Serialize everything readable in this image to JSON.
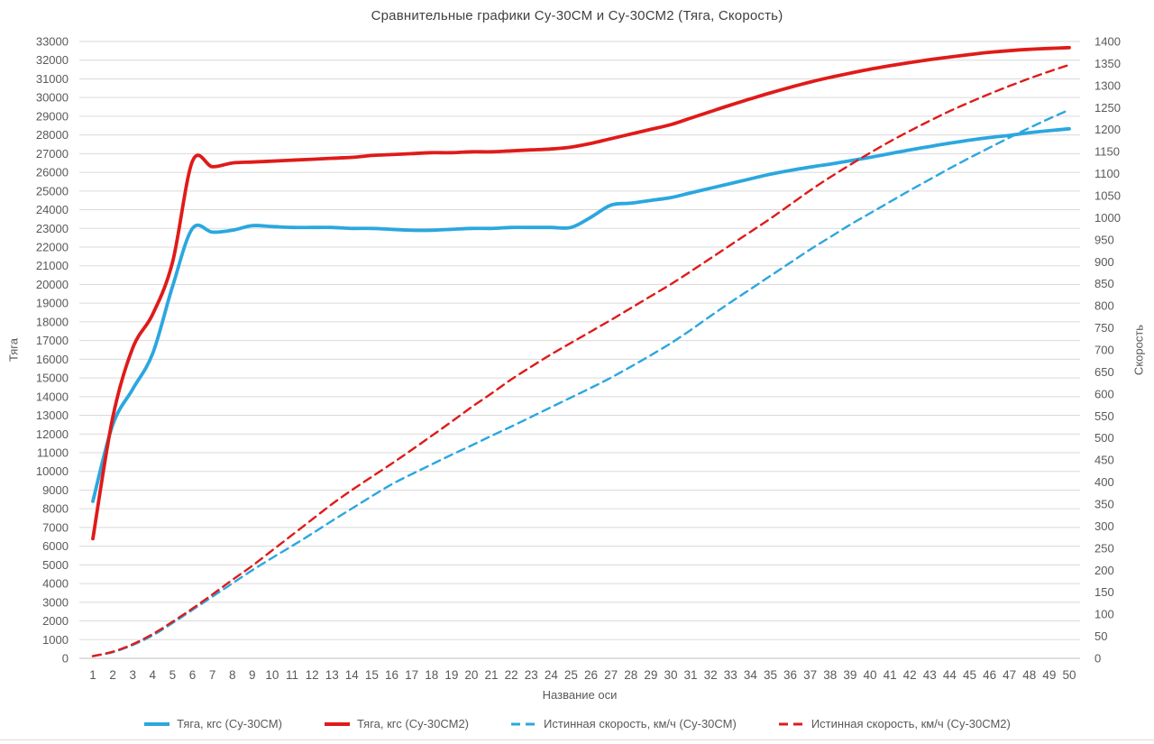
{
  "chart_data": {
    "type": "line",
    "title": "Сравнительные графики Су-30СМ и Су-30СМ2 (Тяга, Скорость)",
    "xlabel": "Название оси",
    "ylabel_left": "Тяга",
    "ylabel_right": "Скорость",
    "grid": true,
    "legend_position": "bottom",
    "axis_left": {
      "min": 0,
      "max": 33000,
      "step": 1000
    },
    "axis_right": {
      "min": 0,
      "max": 1400,
      "step": 50
    },
    "colors": {
      "blue": "#2BA7DF",
      "red": "#DF1B19",
      "gridline": "#DADADA",
      "axis_zero_line": "#BFBFBF",
      "tick_text": "#595959",
      "title_text": "#3F3F3F"
    },
    "x": [
      1,
      2,
      3,
      4,
      5,
      6,
      7,
      8,
      9,
      10,
      11,
      12,
      13,
      14,
      15,
      16,
      17,
      18,
      19,
      20,
      21,
      22,
      23,
      24,
      25,
      26,
      27,
      28,
      29,
      30,
      31,
      32,
      33,
      34,
      35,
      36,
      37,
      38,
      39,
      40,
      41,
      42,
      43,
      44,
      45,
      46,
      47,
      48,
      49,
      50
    ],
    "series": [
      {
        "name": "Тяга, кгс (Су-30СМ)",
        "axis": "left",
        "style": "solid",
        "color": "#2BA7DF",
        "values": [
          8400,
          12500,
          14400,
          16300,
          19900,
          23000,
          22800,
          22900,
          23150,
          23100,
          23050,
          23050,
          23050,
          23000,
          23000,
          22950,
          22900,
          22900,
          22950,
          23000,
          23000,
          23050,
          23050,
          23050,
          23050,
          23600,
          24250,
          24350,
          24500,
          24650,
          24900,
          25150,
          25400,
          25650,
          25900,
          26100,
          26280,
          26440,
          26620,
          26800,
          27000,
          27200,
          27380,
          27560,
          27720,
          27860,
          27980,
          28120,
          28230,
          28330
        ]
      },
      {
        "name": "Тяга, кгс (Су-30СМ2)",
        "axis": "left",
        "style": "solid",
        "color": "#DF1B19",
        "values": [
          6400,
          12900,
          16600,
          18400,
          21200,
          26600,
          26300,
          26500,
          26550,
          26600,
          26650,
          26700,
          26750,
          26800,
          26900,
          26950,
          27000,
          27050,
          27050,
          27100,
          27100,
          27150,
          27200,
          27250,
          27350,
          27550,
          27800,
          28050,
          28300,
          28550,
          28900,
          29250,
          29600,
          29930,
          30250,
          30550,
          30830,
          31080,
          31300,
          31520,
          31700,
          31870,
          32030,
          32170,
          32300,
          32420,
          32510,
          32580,
          32630,
          32670
        ]
      },
      {
        "name": "Истинная скорость, км/ч (Су-30СМ)",
        "axis": "right",
        "style": "dashed",
        "color": "#2BA7DF",
        "values": [
          5,
          14,
          30,
          52,
          80,
          110,
          140,
          170,
          200,
          228,
          255,
          283,
          312,
          340,
          368,
          395,
          418,
          440,
          462,
          483,
          505,
          526,
          548,
          570,
          592,
          614,
          637,
          662,
          688,
          715,
          745,
          777,
          808,
          838,
          868,
          898,
          928,
          956,
          984,
          1010,
          1036,
          1062,
          1087,
          1112,
          1136,
          1159,
          1182,
          1204,
          1225,
          1245
        ]
      },
      {
        "name": "Истинная скорость, км/ч (Су-30СМ2)",
        "axis": "right",
        "style": "dashed",
        "color": "#DF1B19",
        "values": [
          5,
          15,
          32,
          55,
          83,
          113,
          145,
          178,
          210,
          245,
          280,
          315,
          350,
          382,
          412,
          442,
          473,
          505,
          537,
          570,
          601,
          633,
          662,
          690,
          716,
          742,
          768,
          795,
          822,
          849,
          878,
          908,
          938,
          968,
          998,
          1030,
          1062,
          1092,
          1120,
          1147,
          1173,
          1197,
          1220,
          1242,
          1262,
          1281,
          1299,
          1316,
          1332,
          1347
        ]
      }
    ]
  }
}
